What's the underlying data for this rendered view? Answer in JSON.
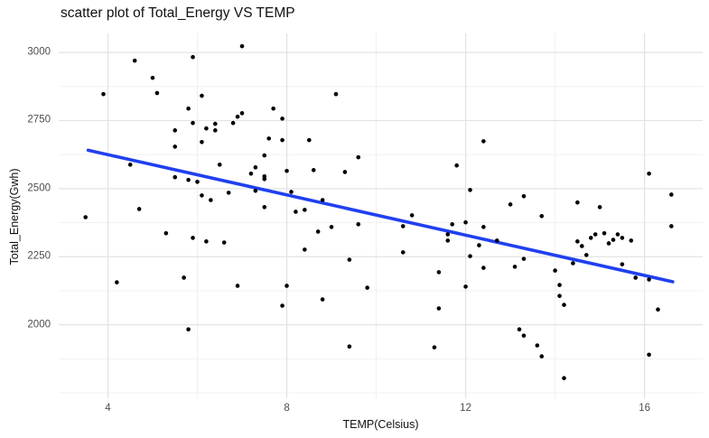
{
  "chart_data": {
    "type": "scatter",
    "title": "scatter plot of Total_Energy VS TEMP",
    "xlabel": "TEMP(Celsius)",
    "ylabel": "Total_Energy(Gwh)",
    "xlim": [
      2.9,
      17.3
    ],
    "ylim": [
      1730,
      3070
    ],
    "x_ticks": [
      4,
      8,
      12,
      16
    ],
    "y_ticks": [
      2000,
      2250,
      2500,
      2750,
      3000
    ],
    "x_minor_ticks": [
      6,
      10,
      14
    ],
    "y_minor_ticks": [
      1750,
      1875,
      2125,
      2375,
      2625,
      2875
    ],
    "grid": "on",
    "legend": "none",
    "style": {
      "point_color": "#000000",
      "point_radius": 2.3,
      "major_grid_color": "#e3e3e3",
      "minor_grid_color": "#efefef",
      "trend_color": "#2040f0",
      "trend_width": 3.6,
      "background": "#ffffff"
    },
    "trend_line": {
      "type": "linear",
      "x1": 3.56,
      "y1": 2641,
      "x2": 16.63,
      "y2": 2158
    },
    "points": [
      [
        4.6,
        2970
      ],
      [
        5.9,
        2983
      ],
      [
        5.0,
        2907
      ],
      [
        5.1,
        2851
      ],
      [
        3.9,
        2847
      ],
      [
        6.1,
        2841
      ],
      [
        5.8,
        2794
      ],
      [
        5.9,
        2741
      ],
      [
        6.2,
        2721
      ],
      [
        6.4,
        2714
      ],
      [
        5.5,
        2714
      ],
      [
        6.1,
        2671
      ],
      [
        5.5,
        2654
      ],
      [
        7.0,
        3023
      ],
      [
        9.1,
        2847
      ],
      [
        7.7,
        2794
      ],
      [
        7.0,
        2777
      ],
      [
        6.9,
        2764
      ],
      [
        6.8,
        2741
      ],
      [
        6.4,
        2738
      ],
      [
        7.9,
        2757
      ],
      [
        7.6,
        2684
      ],
      [
        7.9,
        2678
      ],
      [
        8.5,
        2678
      ],
      [
        7.5,
        2622
      ],
      [
        12.4,
        2674
      ],
      [
        4.5,
        2588
      ],
      [
        5.5,
        2542
      ],
      [
        5.8,
        2532
      ],
      [
        6.0,
        2525
      ],
      [
        6.1,
        2475
      ],
      [
        6.3,
        2458
      ],
      [
        4.7,
        2425
      ],
      [
        3.5,
        2395
      ],
      [
        5.3,
        2336
      ],
      [
        5.9,
        2319
      ],
      [
        6.2,
        2306
      ],
      [
        6.5,
        2588
      ],
      [
        9.6,
        2615
      ],
      [
        7.3,
        2578
      ],
      [
        7.2,
        2555
      ],
      [
        8.0,
        2565
      ],
      [
        8.6,
        2568
      ],
      [
        9.3,
        2561
      ],
      [
        7.5,
        2545
      ],
      [
        7.5,
        2535
      ],
      [
        7.3,
        2492
      ],
      [
        6.7,
        2485
      ],
      [
        8.1,
        2488
      ],
      [
        8.8,
        2458
      ],
      [
        7.5,
        2432
      ],
      [
        8.2,
        2415
      ],
      [
        8.4,
        2422
      ],
      [
        9.0,
        2359
      ],
      [
        8.7,
        2342
      ],
      [
        9.6,
        2369
      ],
      [
        6.6,
        2302
      ],
      [
        8.4,
        2276
      ],
      [
        9.4,
        2239
      ],
      [
        11.8,
        2585
      ],
      [
        12.1,
        2495
      ],
      [
        13.3,
        2472
      ],
      [
        13.0,
        2442
      ],
      [
        10.8,
        2402
      ],
      [
        10.6,
        2362
      ],
      [
        11.7,
        2369
      ],
      [
        12.0,
        2376
      ],
      [
        11.6,
        2332
      ],
      [
        11.6,
        2309
      ],
      [
        12.4,
        2359
      ],
      [
        12.7,
        2309
      ],
      [
        12.3,
        2292
      ],
      [
        10.6,
        2266
      ],
      [
        12.1,
        2252
      ],
      [
        13.3,
        2242
      ],
      [
        13.1,
        2213
      ],
      [
        11.4,
        2193
      ],
      [
        12.4,
        2209
      ],
      [
        13.7,
        2399
      ],
      [
        16.1,
        2555
      ],
      [
        16.6,
        2478
      ],
      [
        14.5,
        2449
      ],
      [
        15.0,
        2432
      ],
      [
        16.6,
        2362
      ],
      [
        14.5,
        2306
      ],
      [
        14.6,
        2289
      ],
      [
        14.7,
        2256
      ],
      [
        14.8,
        2319
      ],
      [
        14.9,
        2332
      ],
      [
        15.1,
        2336
      ],
      [
        15.2,
        2299
      ],
      [
        15.3,
        2312
      ],
      [
        15.4,
        2332
      ],
      [
        15.5,
        2319
      ],
      [
        15.7,
        2309
      ],
      [
        14.4,
        2226
      ],
      [
        14.0,
        2199
      ],
      [
        15.5,
        2222
      ],
      [
        4.2,
        2156
      ],
      [
        5.7,
        2173
      ],
      [
        5.8,
        1983
      ],
      [
        6.9,
        2143
      ],
      [
        8.0,
        2143
      ],
      [
        9.8,
        2136
      ],
      [
        8.8,
        2093
      ],
      [
        7.9,
        2070
      ],
      [
        9.4,
        1920
      ],
      [
        12.0,
        2140
      ],
      [
        11.4,
        2060
      ],
      [
        11.3,
        1917
      ],
      [
        13.2,
        1983
      ],
      [
        13.3,
        1960
      ],
      [
        13.6,
        1924
      ],
      [
        13.7,
        1884
      ],
      [
        15.8,
        2173
      ],
      [
        16.1,
        2166
      ],
      [
        14.1,
        2146
      ],
      [
        14.1,
        2106
      ],
      [
        14.2,
        2073
      ],
      [
        16.3,
        2056
      ],
      [
        16.1,
        1890
      ],
      [
        14.2,
        1804
      ]
    ]
  }
}
